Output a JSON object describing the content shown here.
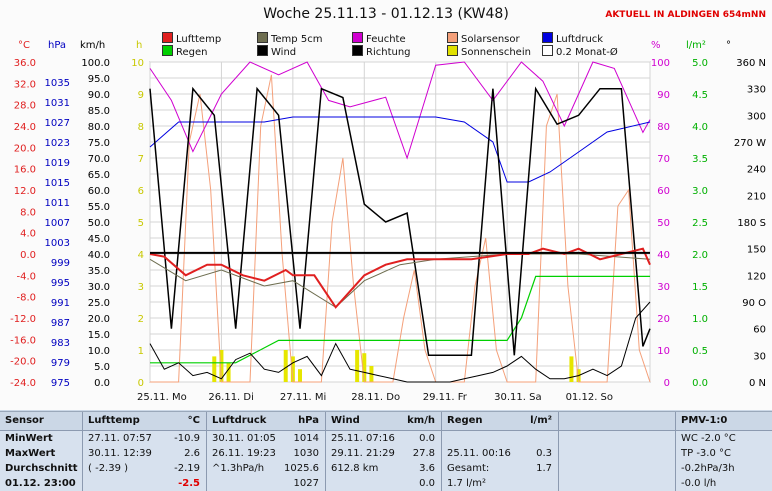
{
  "title": "Woche 25.11.13 - 01.12.13 (KW48)",
  "live_label": "AKTUELL IN ALDINGEN 654mNN",
  "legend": [
    {
      "label": "Lufttemp",
      "color": "#e02020"
    },
    {
      "label": "Temp 5cm",
      "color": "#6e6e50"
    },
    {
      "label": "Feuchte",
      "color": "#d000d0"
    },
    {
      "label": "Solarsensor",
      "color": "#f4a07a"
    },
    {
      "label": "Luftdruck",
      "color": "#0000e0"
    },
    {
      "label": "Regen",
      "color": "#00d000"
    },
    {
      "label": "Wind",
      "color": "#000000"
    },
    {
      "label": "Richtung",
      "color": "#000000"
    },
    {
      "label": "Sonnenschein",
      "color": "#e0e000"
    },
    {
      "label": "0.2 Monat-Ø",
      "color": "#ffffff"
    }
  ],
  "units": {
    "temp": "°C",
    "pressure": "hPa",
    "wind": "km/h",
    "sun": "h",
    "humidity": "%",
    "rain": "l/m²",
    "direction": "°"
  },
  "colors": {
    "temp_axis": "#e02020",
    "pressure_axis": "#0000c0",
    "wind_axis": "#000000",
    "sun_axis": "#c8c800",
    "humidity_axis": "#d000d0",
    "rain_axis": "#00b000",
    "direction_axis": "#000000",
    "avg_line": "#000000"
  },
  "chart_data": {
    "type": "line",
    "title": "Woche 25.11.13 - 01.12.13 (KW48)",
    "x_ticks": [
      "25.11. Mo",
      "26.11. Di",
      "27.11. Mi",
      "28.11. Do",
      "29.11. Fr",
      "30.11. Sa",
      "01.12. So"
    ],
    "axes": {
      "temp": {
        "label": "°C",
        "ticks": [
          "36.0",
          "32.0",
          "28.0",
          "24.0",
          "20.0",
          "16.0",
          "12.0",
          "8.0",
          "4.0",
          "0.0",
          "-4.0",
          "-8.0",
          "-12.0",
          "-16.0",
          "-20.0",
          "-24.0"
        ],
        "range": [
          -24,
          36
        ]
      },
      "pressure": {
        "label": "hPa",
        "ticks": [
          "1035",
          "1031",
          "1027",
          "1023",
          "1019",
          "1015",
          "1011",
          "1007",
          "1003",
          "999",
          "995",
          "991",
          "987",
          "983",
          "979",
          "975"
        ],
        "range": [
          975,
          1039
        ]
      },
      "wind": {
        "label": "km/h",
        "ticks": [
          "100.0",
          "95.0",
          "90.0",
          "85.0",
          "80.0",
          "75.0",
          "70.0",
          "65.0",
          "60.0",
          "55.0",
          "50.0",
          "45.0",
          "40.0",
          "35.0",
          "30.0",
          "25.0",
          "20.0",
          "15.0",
          "10.0",
          "5.0",
          "0.0"
        ],
        "range": [
          0,
          100
        ]
      },
      "sun": {
        "label": "h",
        "ticks": [
          "10",
          "9",
          "8",
          "7",
          "6",
          "5",
          "4",
          "3",
          "2",
          "1",
          "0"
        ],
        "range": [
          0,
          10
        ]
      },
      "humidity": {
        "label": "%",
        "ticks": [
          "100",
          "90",
          "80",
          "70",
          "60",
          "50",
          "40",
          "30",
          "20",
          "10",
          "0"
        ],
        "range": [
          0,
          100
        ]
      },
      "rain": {
        "label": "l/m²",
        "ticks": [
          "5.0",
          "4.5",
          "4.0",
          "3.5",
          "3.0",
          "2.5",
          "2.0",
          "1.5",
          "1.0",
          "0.5",
          "0.0"
        ],
        "range": [
          0,
          5
        ]
      },
      "direction": {
        "label": "°",
        "ticks": [
          "360 N",
          "330",
          "300",
          "270 W",
          "240",
          "210",
          "180 S",
          "150",
          "120",
          "90 O",
          "60",
          "30",
          "0 N"
        ],
        "range": [
          0,
          360
        ]
      }
    },
    "series": [
      {
        "name": "Lufttemp",
        "axis": "temp",
        "x": [
          0,
          0.2,
          0.5,
          0.8,
          1.0,
          1.3,
          1.6,
          1.9,
          2.0,
          2.3,
          2.6,
          3.0,
          3.3,
          3.6,
          4.0,
          4.5,
          5.0,
          5.3,
          5.5,
          5.8,
          6.0,
          6.3,
          6.6,
          6.9,
          7.0
        ],
        "y": [
          0,
          -0.5,
          -4,
          -2,
          -2,
          -4,
          -5,
          -3,
          -4,
          -4,
          -10,
          -4,
          -2,
          -1,
          -1,
          -1,
          0,
          0,
          1,
          0,
          1,
          -1,
          0,
          1,
          -2
        ]
      },
      {
        "name": "Temp 5cm",
        "axis": "temp",
        "x": [
          0,
          0.5,
          1.0,
          1.6,
          2.0,
          2.6,
          3.0,
          3.5,
          4.0,
          5.0,
          6.0,
          7.0
        ],
        "y": [
          -1,
          -5,
          -3,
          -6,
          -5,
          -10,
          -5,
          -2,
          -1,
          0,
          0,
          -1
        ]
      },
      {
        "name": "Feuchte",
        "axis": "humidity",
        "x": [
          0,
          0.3,
          0.6,
          1.0,
          1.4,
          1.8,
          2.2,
          2.5,
          2.8,
          3.3,
          3.6,
          4.0,
          4.4,
          4.8,
          5.2,
          5.5,
          5.8,
          6.2,
          6.5,
          6.9,
          7.0
        ],
        "y": [
          98,
          88,
          72,
          90,
          100,
          96,
          100,
          88,
          86,
          89,
          70,
          99,
          100,
          88,
          100,
          94,
          80,
          100,
          98,
          78,
          82
        ]
      },
      {
        "name": "Luftdruck",
        "axis": "pressure",
        "x": [
          0,
          0.4,
          0.8,
          1.2,
          1.6,
          2.0,
          2.4,
          2.8,
          3.2,
          3.6,
          4.0,
          4.4,
          4.8,
          5.0,
          5.3,
          5.6,
          6.0,
          6.4,
          7.0
        ],
        "y": [
          1022,
          1027,
          1027,
          1027,
          1027,
          1028,
          1028,
          1028,
          1028,
          1028,
          1028,
          1027,
          1023,
          1015,
          1015,
          1017,
          1021,
          1025,
          1027
        ]
      },
      {
        "name": "Regen",
        "axis": "rain",
        "x": [
          0,
          1.2,
          1.8,
          2.5,
          3.0,
          4.0,
          5.0,
          5.2,
          5.4,
          6.0,
          7.0
        ],
        "y": [
          0.3,
          0.3,
          0.65,
          0.65,
          0.65,
          0.65,
          0.65,
          1.0,
          1.65,
          1.65,
          1.65
        ]
      },
      {
        "name": "Wind",
        "axis": "wind",
        "x": [
          0,
          0.2,
          0.4,
          0.6,
          0.8,
          1.0,
          1.2,
          1.4,
          1.6,
          1.8,
          2.0,
          2.2,
          2.4,
          2.6,
          2.8,
          3.0,
          3.2,
          3.4,
          3.6,
          3.8,
          4.0,
          4.2,
          4.4,
          4.6,
          4.8,
          5.0,
          5.2,
          5.4,
          5.6,
          5.8,
          6.0,
          6.2,
          6.4,
          6.6,
          6.8,
          7.0
        ],
        "y": [
          12,
          4,
          6,
          2,
          3,
          1,
          7,
          9,
          4,
          3,
          6,
          8,
          2,
          12,
          4,
          3,
          2,
          1,
          0,
          0,
          0,
          0,
          1,
          2,
          3,
          5,
          8,
          4,
          1,
          1,
          2,
          4,
          2,
          5,
          20,
          25
        ]
      },
      {
        "name": "Richtung",
        "axis": "direction",
        "x": [
          0,
          0.3,
          0.6,
          0.9,
          1.2,
          1.5,
          1.8,
          2.1,
          2.4,
          2.7,
          3.0,
          3.3,
          3.6,
          3.9,
          4.2,
          4.5,
          4.8,
          5.1,
          5.4,
          5.7,
          6.0,
          6.3,
          6.6,
          6.9,
          7.0
        ],
        "y": [
          330,
          60,
          330,
          300,
          60,
          330,
          300,
          60,
          330,
          320,
          200,
          180,
          190,
          30,
          30,
          30,
          330,
          30,
          330,
          290,
          300,
          330,
          330,
          40,
          60
        ]
      },
      {
        "name": "Solarsensor",
        "axis": "humidity",
        "x": [
          0,
          0.4,
          0.55,
          0.7,
          0.85,
          1.0,
          1.4,
          1.55,
          1.7,
          1.85,
          2.0,
          2.4,
          2.55,
          2.7,
          2.85,
          3.0,
          3.4,
          3.55,
          3.7,
          3.85,
          4.0,
          4.4,
          4.55,
          4.7,
          4.85,
          5.0,
          5.4,
          5.55,
          5.7,
          5.85,
          6.0,
          6.4,
          6.55,
          6.7,
          6.85,
          7.0
        ],
        "y": [
          0,
          0,
          75,
          90,
          60,
          0,
          0,
          80,
          96,
          40,
          0,
          0,
          50,
          70,
          30,
          0,
          0,
          20,
          35,
          10,
          0,
          0,
          30,
          45,
          10,
          0,
          0,
          80,
          90,
          30,
          0,
          0,
          55,
          60,
          10,
          0
        ]
      },
      {
        "name": "0.2 Monat-Ø",
        "axis": "temp",
        "x": [
          0,
          7
        ],
        "y": [
          0.2,
          0.2
        ]
      }
    ],
    "sunshine_bars": {
      "axis": "sun",
      "x": [
        0.9,
        1.0,
        1.1,
        1.9,
        2.0,
        2.1,
        2.9,
        3.0,
        3.1,
        5.9,
        6.0
      ],
      "y": [
        0.8,
        1.0,
        0.6,
        1.0,
        0.8,
        0.4,
        1.0,
        0.9,
        0.5,
        0.8,
        0.4
      ]
    },
    "grid": true
  },
  "stats": {
    "sensor": {
      "header": "Sensor",
      "rows": [
        "MinWert",
        "MaxWert",
        "Durchschnitt",
        "01.12. 23:00"
      ]
    },
    "temp": {
      "header": "Lufttemp",
      "unit": "°C",
      "rows": [
        [
          "27.11.  07:57",
          "-10.9"
        ],
        [
          "30.11.  12:39",
          "2.6"
        ],
        [
          "( -2.39 )",
          "-2.19"
        ],
        [
          "",
          "-2.5"
        ]
      ]
    },
    "pressure": {
      "header": "Luftdruck",
      "unit": "hPa",
      "rows": [
        [
          "30.11.  01:05",
          "1014"
        ],
        [
          "26.11.  19:23",
          "1030"
        ],
        [
          "^1.3hPa/h",
          "1025.6"
        ],
        [
          "",
          "1027"
        ]
      ]
    },
    "wind": {
      "header": "Wind",
      "unit": "km/h",
      "rows": [
        [
          "25.11.  07:16",
          "0.0"
        ],
        [
          "29.11.  21:29",
          "27.8"
        ],
        [
          "612.8 km",
          "3.6"
        ],
        [
          "",
          "0.0"
        ]
      ]
    },
    "rain": {
      "header": "Regen",
      "unit": "l/m²",
      "rows": [
        [
          "",
          ""
        ],
        [
          "25.11.  00:16",
          "0.3"
        ],
        [
          "Gesamt:",
          "1.7"
        ],
        [
          "1.7 l/m²",
          ""
        ]
      ]
    },
    "pmv": {
      "header": "PMV-1:0",
      "rows": [
        "WC -2.0 °C",
        "TP -3.0 °C",
        "-0.2hPa/3h",
        "-0.0 l/h"
      ]
    }
  }
}
